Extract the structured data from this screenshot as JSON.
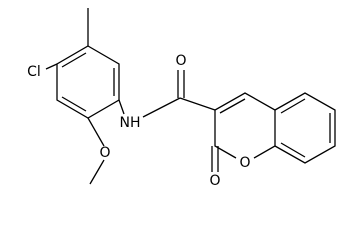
{
  "atoms": [
    {
      "label": "Cl"
    },
    {
      "label": "O"
    },
    {
      "label": "NH"
    },
    {
      "label": "O"
    },
    {
      "label": "O"
    },
    {
      "label": "O"
    }
  ]
}
